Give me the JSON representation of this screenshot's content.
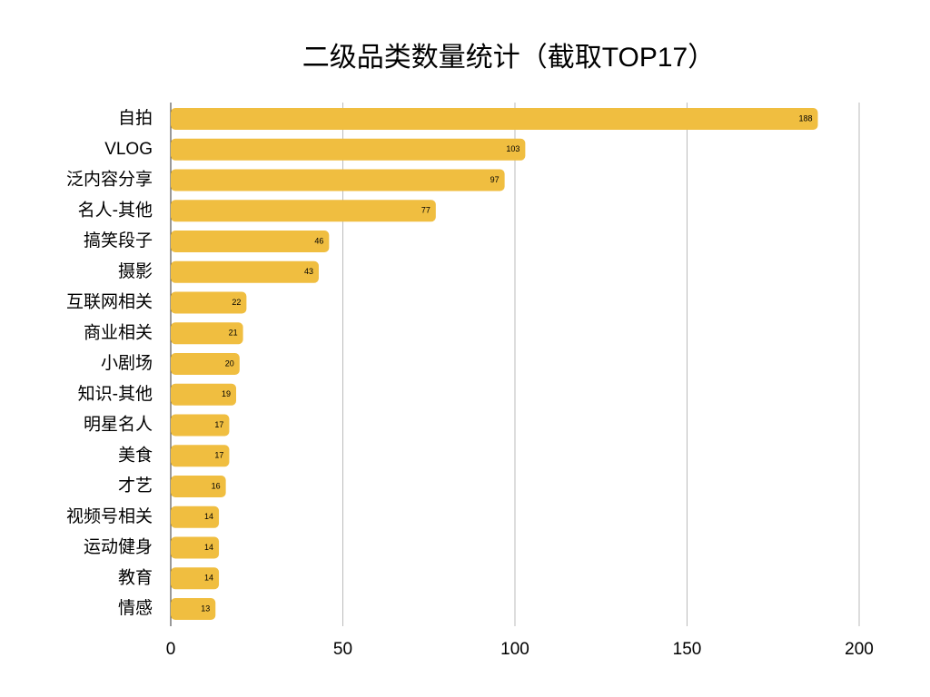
{
  "chart_data": {
    "type": "bar",
    "orientation": "horizontal",
    "title": "二级品类数量统计（截取TOP17）",
    "categories": [
      "自拍",
      "VLOG",
      "泛内容分享",
      "名人-其他",
      "搞笑段子",
      "摄影",
      "互联网相关",
      "商业相关",
      "小剧场",
      "知识-其他",
      "明星名人",
      "美食",
      "才艺",
      "视频号相关",
      "运动健身",
      "教育",
      "情感"
    ],
    "values": [
      188,
      103,
      97,
      77,
      46,
      43,
      22,
      21,
      20,
      19,
      17,
      17,
      16,
      14,
      14,
      14,
      13
    ],
    "color": "#f0be40",
    "xlim": [
      0,
      200
    ],
    "xticks": [
      0,
      50,
      100,
      150,
      200
    ],
    "grid": true
  }
}
